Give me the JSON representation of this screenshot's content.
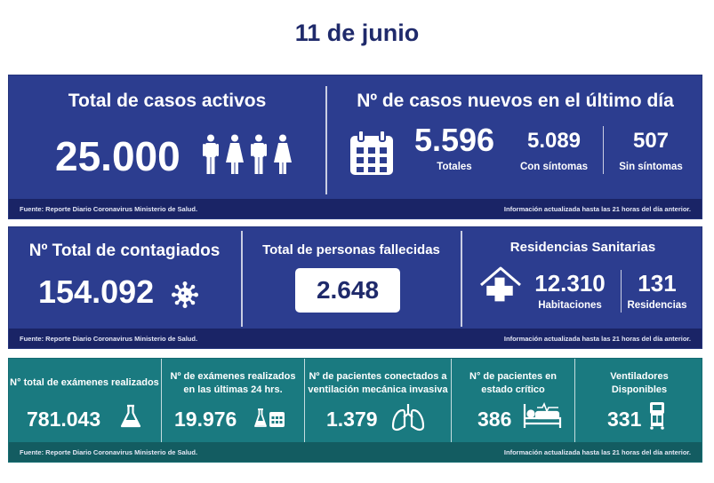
{
  "page": {
    "date_title": "11 de junio"
  },
  "colors": {
    "blue_panel": "#2c3d8f",
    "teal_panel": "#1a7a80",
    "footer_blue": "#1a2466",
    "title_navy": "#1f2a6b"
  },
  "panel1": {
    "active": {
      "title": "Total de casos activos",
      "value": "25.000"
    },
    "new_cases": {
      "title": "Nº de casos nuevos en el último día",
      "total_value": "5.596",
      "total_label": "Totales",
      "sym_value": "5.089",
      "sym_label": "Con síntomas",
      "asym_value": "507",
      "asym_label": "Sin síntomas"
    },
    "footer_source": "Fuente: Reporte Diario Coronavirus Ministerio de Salud.",
    "footer_note": "Información actualizada hasta las 21 horas  del día anterior."
  },
  "panel2": {
    "contagiados": {
      "title": "Nº Total de contagiados",
      "value": "154.092"
    },
    "fallecidos": {
      "title": "Total de personas fallecidas",
      "value": "2.648"
    },
    "residencias": {
      "title": "Residencias Sanitarias",
      "rooms_value": "12.310",
      "rooms_label": "Habitaciones",
      "res_value": "131",
      "res_label": "Residencias"
    },
    "footer_source": "Fuente: Reporte Diario Coronavirus Ministerio de Salud.",
    "footer_note": "Información actualizada hasta las 21 horas  del día anterior."
  },
  "panel3": {
    "exams_total": {
      "title": "N° total de exámenes realizados",
      "value": "781.043"
    },
    "exams_24h": {
      "title_1": "Nº de exámenes realizados",
      "title_2": "en las últimas 24 hrs.",
      "value": "19.976"
    },
    "ventilated": {
      "title_1": "Nº de pacientes conectados a",
      "title_2": "ventilación mecánica invasiva",
      "value": "1.379"
    },
    "critical": {
      "title_1": "N° de pacientes  en",
      "title_2": "estado crítico",
      "value": "386"
    },
    "ventilators": {
      "title_1": "Ventiladores",
      "title_2": "Disponibles",
      "value": "331"
    },
    "footer_source": "Fuente: Reporte Diario Coronavirus Ministerio de Salud.",
    "footer_note": "Información actualizada hasta las 21 horas  del día anterior."
  },
  "icons": [
    "people-icon",
    "calendar-icon",
    "virus-icon",
    "house-cross-icon",
    "flask-icon",
    "flask-calendar-icon",
    "lungs-icon",
    "hospital-bed-icon",
    "ventilator-icon"
  ]
}
